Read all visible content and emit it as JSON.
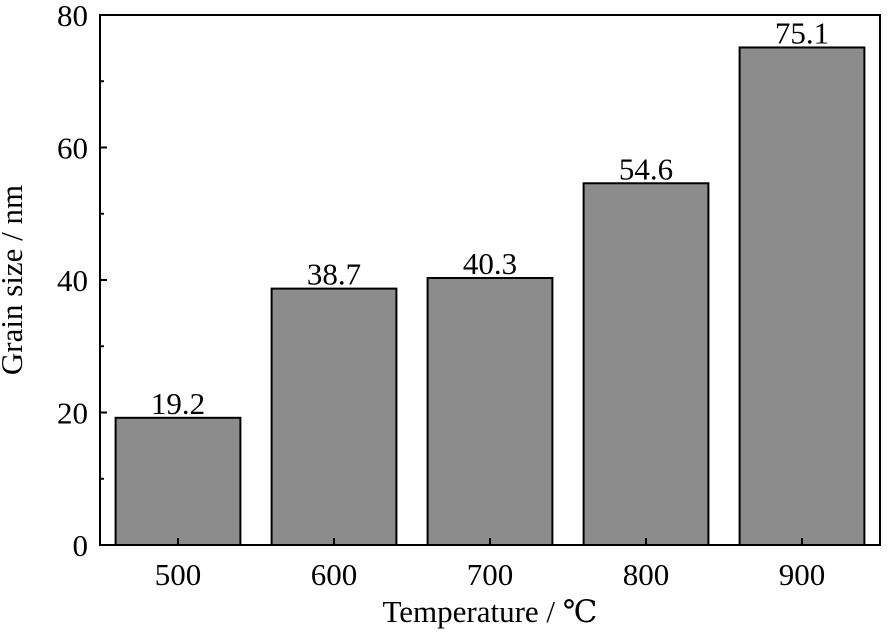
{
  "chart_data": {
    "type": "bar",
    "categories": [
      "500",
      "600",
      "700",
      "800",
      "900"
    ],
    "values": [
      19.2,
      38.7,
      40.3,
      54.6,
      75.1
    ],
    "data_labels": [
      "19.2",
      "38.7",
      "40.3",
      "54.6",
      "75.1"
    ],
    "xlabel": "Temperature / ℃",
    "ylabel": "Grain size / nm",
    "ylim": [
      0,
      80
    ],
    "yticks": [
      0,
      20,
      40,
      60,
      80
    ],
    "ytick_labels": [
      "0",
      "20",
      "40",
      "60",
      "80"
    ],
    "grid": false,
    "bar_color": "#8c8c8c"
  }
}
